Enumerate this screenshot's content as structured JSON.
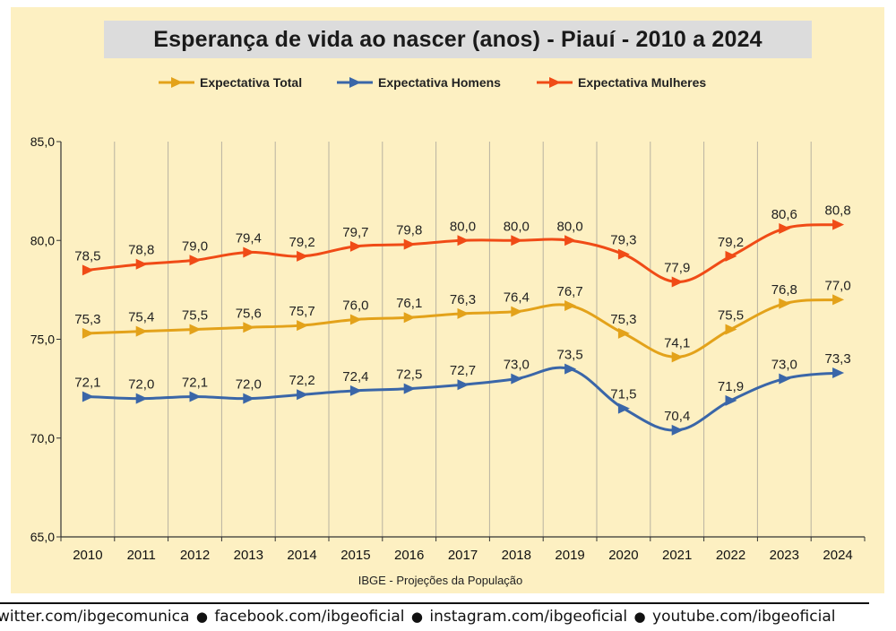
{
  "chart_data": {
    "type": "line",
    "title": "Esperança de vida ao nascer (anos) - Piauí - 2010 a 2024",
    "source": "IBGE - Projeções da População",
    "xlabel": "",
    "ylabel": "",
    "ylim": [
      65.0,
      85.0
    ],
    "y_ticks": [
      "65,0",
      "70,0",
      "75,0",
      "80,0",
      "85,0"
    ],
    "grid": "vertical",
    "legend_position": "top-center",
    "categories": [
      "2010",
      "2011",
      "2012",
      "2013",
      "2014",
      "2015",
      "2016",
      "2017",
      "2018",
      "2019",
      "2020",
      "2021",
      "2022",
      "2023",
      "2024"
    ],
    "series": [
      {
        "name": "Expectativa Total",
        "color": "#e3a21a",
        "values": [
          75.3,
          75.4,
          75.5,
          75.6,
          75.7,
          76.0,
          76.1,
          76.3,
          76.4,
          76.7,
          75.3,
          74.1,
          75.5,
          76.8,
          77.0
        ],
        "labels": [
          "75,3",
          "75,4",
          "75,5",
          "75,6",
          "75,7",
          "76,0",
          "76,1",
          "76,3",
          "76,4",
          "76,7",
          "75,3",
          "74,1",
          "75,5",
          "76,8",
          "77,0"
        ]
      },
      {
        "name": "Expectativa Homens",
        "color": "#3a66a8",
        "values": [
          72.1,
          72.0,
          72.1,
          72.0,
          72.2,
          72.4,
          72.5,
          72.7,
          73.0,
          73.5,
          71.5,
          70.4,
          71.9,
          73.0,
          73.3
        ],
        "labels": [
          "72,1",
          "72,0",
          "72,1",
          "72,0",
          "72,2",
          "72,4",
          "72,5",
          "72,7",
          "73,0",
          "73,5",
          "71,5",
          "70,4",
          "71,9",
          "73,0",
          "73,3"
        ]
      },
      {
        "name": "Expectativa Mulheres",
        "color": "#f04b16",
        "values": [
          78.5,
          78.8,
          79.0,
          79.4,
          79.2,
          79.7,
          79.8,
          80.0,
          80.0,
          80.0,
          79.3,
          77.9,
          79.2,
          80.6,
          80.8
        ],
        "labels": [
          "78,5",
          "78,8",
          "79,0",
          "79,4",
          "79,2",
          "79,7",
          "79,8",
          "80,0",
          "80,0",
          "80,0",
          "79,3",
          "77,9",
          "79,2",
          "80,6",
          "80,8"
        ]
      }
    ]
  },
  "footer": {
    "links": [
      "witter.com/ibgecomunica",
      "facebook.com/ibgeoficial",
      "instagram.com/ibgeoficial",
      "youtube.com/ibgeoficial"
    ],
    "separator": "●"
  }
}
